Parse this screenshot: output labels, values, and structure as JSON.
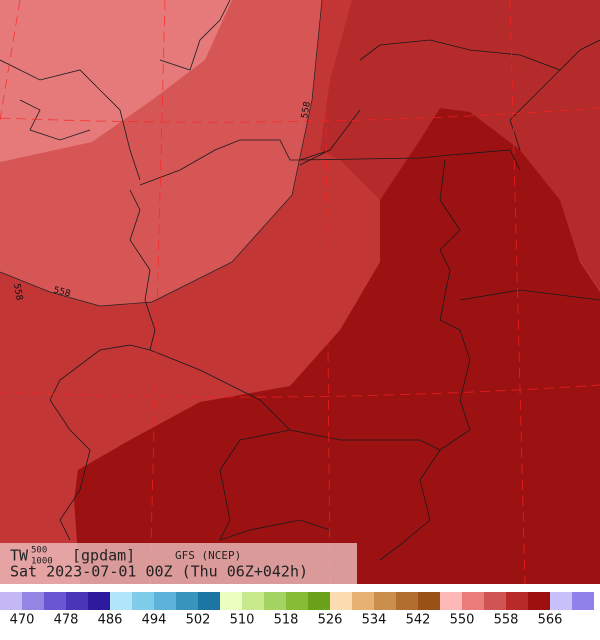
{
  "map": {
    "contour_labels": [
      "558",
      "558",
      "558"
    ],
    "legend": {
      "variable": "TW",
      "level_top": "500",
      "level_bottom": "1000",
      "unit": "[gpdam]",
      "model": "GFS (NCEP)",
      "time": "Sat 2023-07-01 00Z (Thu 06Z+042h)"
    },
    "colorbar": {
      "colors": [
        "#c4b8f4",
        "#9484e4",
        "#6a56d0",
        "#4a34b8",
        "#2e1a9c",
        "#b0e6fa",
        "#80cceb",
        "#5cb2d8",
        "#3894bc",
        "#1c76a4",
        "#eaffc0",
        "#c8ea8c",
        "#a6d462",
        "#86bc36",
        "#6aa21a",
        "#fedcb2",
        "#e6b274",
        "#cc8e4c",
        "#b26e2c",
        "#985218",
        "#feb8b8",
        "#ea7c7c",
        "#d05454",
        "#b82a2a",
        "#9c1010",
        "#c8c0fa",
        "#9080ea"
      ],
      "labels": [
        "470",
        "478",
        "486",
        "494",
        "502",
        "510",
        "518",
        "526",
        "534",
        "542",
        "550",
        "558",
        "566"
      ]
    }
  }
}
